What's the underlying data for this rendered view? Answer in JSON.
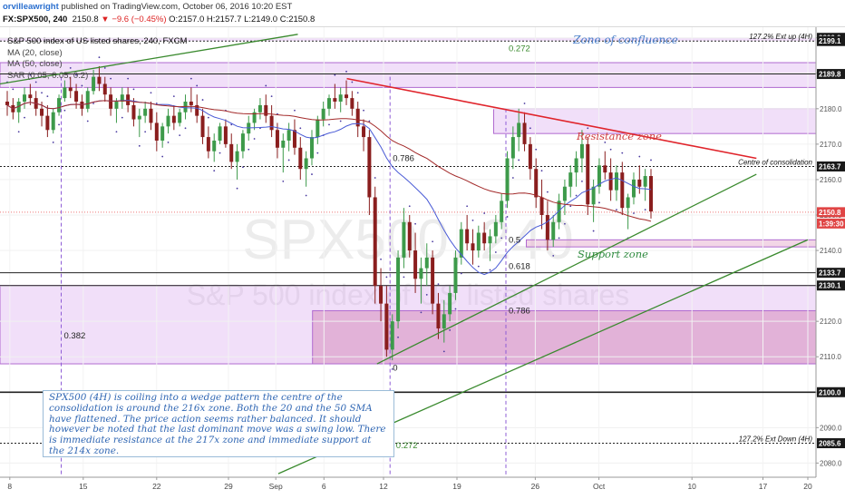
{
  "header": {
    "user": "orvilleawright",
    "published": " published on TradingView.com, October 06, 2016 10:20 EST",
    "symbol": "FX:SPX500, 240",
    "last": "2150.8",
    "change": "▼ −9.6 (−0.45%)",
    "ohlc": "O:2157.0 H:2157.7 L:2149.0 C:2150.8"
  },
  "legend": {
    "title": "S&P 500 index of US listed shares, 240, FXCM",
    "items": [
      "MA (20, close)",
      "MA (50, close)",
      "SAR (0.05, 0.05, 0.2)"
    ]
  },
  "note": "SPX500 (4H) is coiling into a wedge pattern the centre of the consolidation is around the 216x zone. Both the 20 and the 50 SMA have flattened. The price action seems rather balanced. It should however be noted that the last dominant move was a swing low. There is immediate resistance at the 217x zone and immediate support at the 214x zone.",
  "chart_data": {
    "type": "candlestick",
    "title": "S&P 500 index of US listed shares, 240, FXCM",
    "watermark": [
      "SPX500, 240",
      "S&P 500 index of US listed shares"
    ],
    "ylim": [
      2076,
      2203
    ],
    "yticks": [
      2080.0,
      2090.0,
      2100.0,
      2110.0,
      2120.0,
      2130.0,
      2140.0,
      2150.0,
      2160.0,
      2170.0,
      2180.0,
      2190.0,
      2200.0
    ],
    "xticks": [
      {
        "label": "8",
        "pos": 0.012
      },
      {
        "label": "15",
        "pos": 0.102
      },
      {
        "label": "22",
        "pos": 0.192
      },
      {
        "label": "29",
        "pos": 0.28
      },
      {
        "label": "Sep",
        "pos": 0.338
      },
      {
        "label": "6",
        "pos": 0.397
      },
      {
        "label": "12",
        "pos": 0.47
      },
      {
        "label": "19",
        "pos": 0.56
      },
      {
        "label": "26",
        "pos": 0.656
      },
      {
        "label": "Oct",
        "pos": 0.734
      },
      {
        "label": "10",
        "pos": 0.848
      },
      {
        "label": "17",
        "pos": 0.935
      },
      {
        "label": "20",
        "pos": 0.99
      }
    ],
    "price_tags": [
      {
        "value": 2200.0,
        "label": "2200.0",
        "style": "dark"
      },
      {
        "value": 2199.1,
        "label": "2199.1",
        "style": "dark"
      },
      {
        "value": 2189.8,
        "label": "2189.8",
        "style": "dark"
      },
      {
        "value": 2163.7,
        "label": "2163.7",
        "style": "dark"
      },
      {
        "value": 2150.8,
        "label": "2150.8",
        "style": "red"
      },
      {
        "value": 2147.6,
        "label": "1:39:30",
        "style": "red"
      },
      {
        "value": 2133.7,
        "label": "2133.7",
        "style": "dark"
      },
      {
        "value": 2130.1,
        "label": "2130.1",
        "style": "dark"
      },
      {
        "value": 2100.0,
        "label": "2100.0",
        "style": "dark"
      },
      {
        "value": 2085.6,
        "label": "2085.6",
        "style": "dark"
      }
    ],
    "zones": [
      {
        "label": "Zone of confluence",
        "x0": 0.0,
        "x1": 1.0,
        "y0": 2199.1,
        "y1": 2200.0
      },
      {
        "label": "",
        "x0": 0.0,
        "x1": 1.0,
        "y0": 2186.0,
        "y1": 2193.0
      },
      {
        "label": "Resistance zone",
        "x0": 0.605,
        "x1": 1.0,
        "y0": 2173.0,
        "y1": 2180.0
      },
      {
        "label": "Support zone",
        "x0": 0.645,
        "x1": 1.0,
        "y0": 2141.0,
        "y1": 2143.0
      },
      {
        "label": "",
        "x0": 0.0,
        "x1": 1.0,
        "y0": 2108.0,
        "y1": 2130.1
      },
      {
        "label": "",
        "x0": 0.383,
        "x1": 1.0,
        "y0": 2108.0,
        "y1": 2123.0
      }
    ],
    "levels": [
      {
        "value": 2199.1,
        "label": "127.2% Ext up (4H)"
      },
      {
        "value": 2189.8,
        "label": ""
      },
      {
        "value": 2163.7,
        "label": "Centre of consolidation"
      },
      {
        "value": 2133.7,
        "label": ""
      },
      {
        "value": 2130.1,
        "label": ""
      },
      {
        "value": 2100.0,
        "label": ""
      },
      {
        "value": 2085.6,
        "label": "127.2% Ext Down (4H)"
      }
    ],
    "fib_labels": [
      {
        "text": "0.272",
        "x": 0.62,
        "y": 2197.0
      },
      {
        "text": "0.786",
        "x": 0.478,
        "y": 2166.0
      },
      {
        "text": "0.5",
        "x": 0.62,
        "y": 2143.0
      },
      {
        "text": "0.618",
        "x": 0.62,
        "y": 2135.5
      },
      {
        "text": "0.786",
        "x": 0.62,
        "y": 2123.0
      },
      {
        "text": "0.382",
        "x": 0.075,
        "y": 2116.0
      },
      {
        "text": "0",
        "x": 0.478,
        "y": 2106.8
      },
      {
        "text": "0.272",
        "x": 0.482,
        "y": 2085.0
      }
    ],
    "trendlines": [
      {
        "color": "red",
        "points": [
          [
            0.425,
            2188.5
          ],
          [
            0.927,
            2166.0
          ]
        ]
      },
      {
        "color": "green",
        "points": [
          [
            0.0,
            2187.0
          ],
          [
            0.365,
            2201.0
          ]
        ]
      },
      {
        "color": "green",
        "points": [
          [
            0.462,
            2108.0
          ],
          [
            0.927,
            2161.5
          ]
        ]
      },
      {
        "color": "green",
        "points": [
          [
            0.341,
            2077.0
          ],
          [
            0.99,
            2143.0
          ]
        ]
      }
    ],
    "candles": [
      [
        2182,
        2185,
        2178,
        2181
      ],
      [
        2181,
        2183,
        2177,
        2179
      ],
      [
        2179,
        2183,
        2176,
        2182
      ],
      [
        2182,
        2186,
        2180,
        2184
      ],
      [
        2184,
        2187,
        2181,
        2183
      ],
      [
        2183,
        2185,
        2178,
        2180
      ],
      [
        2180,
        2182,
        2175,
        2178
      ],
      [
        2178,
        2181,
        2172,
        2174
      ],
      [
        2174,
        2180,
        2173,
        2179
      ],
      [
        2179,
        2184,
        2178,
        2183
      ],
      [
        2183,
        2188,
        2182,
        2186
      ],
      [
        2186,
        2189,
        2183,
        2185
      ],
      [
        2185,
        2187,
        2180,
        2182
      ],
      [
        2182,
        2184,
        2178,
        2180
      ],
      [
        2180,
        2186,
        2179,
        2185
      ],
      [
        2185,
        2191,
        2184,
        2189
      ],
      [
        2189,
        2192,
        2185,
        2187
      ],
      [
        2187,
        2189,
        2182,
        2184
      ],
      [
        2184,
        2186,
        2178,
        2180
      ],
      [
        2180,
        2183,
        2176,
        2182
      ],
      [
        2182,
        2186,
        2180,
        2184
      ],
      [
        2184,
        2186,
        2179,
        2181
      ],
      [
        2181,
        2183,
        2175,
        2177
      ],
      [
        2177,
        2180,
        2172,
        2178
      ],
      [
        2178,
        2182,
        2176,
        2180
      ],
      [
        2180,
        2182,
        2174,
        2176
      ],
      [
        2176,
        2179,
        2168,
        2171
      ],
      [
        2171,
        2176,
        2169,
        2175
      ],
      [
        2175,
        2180,
        2173,
        2178
      ],
      [
        2178,
        2181,
        2174,
        2176
      ],
      [
        2176,
        2180,
        2175,
        2179
      ],
      [
        2179,
        2184,
        2177,
        2182
      ],
      [
        2182,
        2186,
        2179,
        2181
      ],
      [
        2181,
        2184,
        2176,
        2178
      ],
      [
        2178,
        2180,
        2170,
        2172
      ],
      [
        2172,
        2175,
        2166,
        2168
      ],
      [
        2168,
        2173,
        2165,
        2171
      ],
      [
        2171,
        2176,
        2170,
        2175
      ],
      [
        2175,
        2177,
        2169,
        2170
      ],
      [
        2170,
        2173,
        2163,
        2165
      ],
      [
        2165,
        2170,
        2160,
        2168
      ],
      [
        2168,
        2174,
        2166,
        2173
      ],
      [
        2173,
        2178,
        2171,
        2176
      ],
      [
        2176,
        2180,
        2174,
        2179
      ],
      [
        2179,
        2183,
        2177,
        2181
      ],
      [
        2181,
        2184,
        2176,
        2178
      ],
      [
        2178,
        2181,
        2172,
        2174
      ],
      [
        2174,
        2176,
        2166,
        2169
      ],
      [
        2169,
        2173,
        2162,
        2171
      ],
      [
        2171,
        2176,
        2168,
        2174
      ],
      [
        2174,
        2177,
        2167,
        2169
      ],
      [
        2169,
        2172,
        2160,
        2163
      ],
      [
        2163,
        2168,
        2158,
        2166
      ],
      [
        2166,
        2174,
        2164,
        2172
      ],
      [
        2172,
        2178,
        2170,
        2177
      ],
      [
        2177,
        2182,
        2175,
        2180
      ],
      [
        2180,
        2184,
        2178,
        2183
      ],
      [
        2183,
        2187,
        2180,
        2182
      ],
      [
        2182,
        2186,
        2179,
        2184
      ],
      [
        2184,
        2188,
        2181,
        2183
      ],
      [
        2183,
        2185,
        2178,
        2180
      ],
      [
        2180,
        2182,
        2172,
        2175
      ],
      [
        2175,
        2177,
        2168,
        2172
      ],
      [
        2172,
        2174,
        2150,
        2155
      ],
      [
        2155,
        2158,
        2125,
        2130
      ],
      [
        2130,
        2135,
        2120,
        2125
      ],
      [
        2125,
        2130,
        2110,
        2112
      ],
      [
        2112,
        2122,
        2109,
        2120
      ],
      [
        2120,
        2140,
        2118,
        2138
      ],
      [
        2138,
        2152,
        2135,
        2148
      ],
      [
        2148,
        2150,
        2138,
        2140
      ],
      [
        2140,
        2145,
        2128,
        2132
      ],
      [
        2132,
        2138,
        2125,
        2135
      ],
      [
        2135,
        2142,
        2130,
        2138
      ],
      [
        2138,
        2140,
        2122,
        2125
      ],
      [
        2125,
        2128,
        2115,
        2118
      ],
      [
        2118,
        2126,
        2114,
        2122
      ],
      [
        2122,
        2130,
        2120,
        2128
      ],
      [
        2128,
        2140,
        2126,
        2138
      ],
      [
        2138,
        2148,
        2136,
        2146
      ],
      [
        2146,
        2150,
        2140,
        2142
      ],
      [
        2142,
        2146,
        2136,
        2140
      ],
      [
        2140,
        2147,
        2138,
        2145
      ],
      [
        2145,
        2148,
        2140,
        2142
      ],
      [
        2142,
        2146,
        2137,
        2144
      ],
      [
        2144,
        2150,
        2142,
        2148
      ],
      [
        2148,
        2156,
        2146,
        2154
      ],
      [
        2154,
        2168,
        2152,
        2166
      ],
      [
        2166,
        2175,
        2163,
        2172
      ],
      [
        2172,
        2180,
        2168,
        2176
      ],
      [
        2176,
        2179,
        2168,
        2170
      ],
      [
        2170,
        2172,
        2160,
        2163
      ],
      [
        2163,
        2166,
        2152,
        2155
      ],
      [
        2155,
        2160,
        2146,
        2150
      ],
      [
        2150,
        2154,
        2140,
        2143
      ],
      [
        2143,
        2150,
        2141,
        2148
      ],
      [
        2148,
        2156,
        2146,
        2154
      ],
      [
        2154,
        2160,
        2150,
        2158
      ],
      [
        2158,
        2164,
        2155,
        2162
      ],
      [
        2162,
        2168,
        2158,
        2166
      ],
      [
        2166,
        2174,
        2162,
        2170
      ],
      [
        2170,
        2172,
        2150,
        2153
      ],
      [
        2153,
        2160,
        2148,
        2158
      ],
      [
        2158,
        2166,
        2156,
        2164
      ],
      [
        2164,
        2168,
        2160,
        2162
      ],
      [
        2162,
        2166,
        2154,
        2157
      ],
      [
        2157,
        2164,
        2154,
        2162
      ],
      [
        2162,
        2165,
        2150,
        2152
      ],
      [
        2152,
        2156,
        2146,
        2155
      ],
      [
        2155,
        2162,
        2153,
        2160
      ],
      [
        2160,
        2164,
        2156,
        2158
      ],
      [
        2158,
        2163,
        2154,
        2161
      ],
      [
        2161,
        2163,
        2149,
        2151
      ]
    ]
  }
}
